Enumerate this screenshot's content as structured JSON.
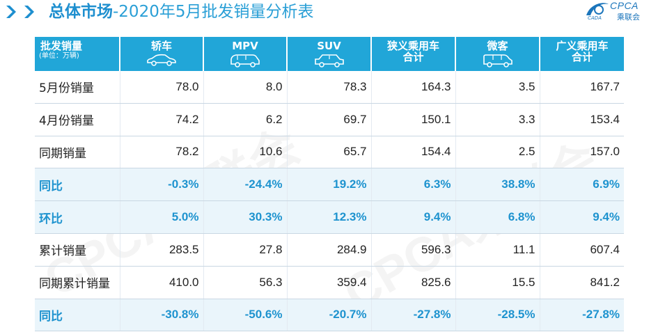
{
  "header": {
    "title_bold": "总体市场",
    "title_rest": "-2020年5月批发销量分析表"
  },
  "logo": {
    "text": "CPCA",
    "sub": "乘联会",
    "small": "CADA"
  },
  "watermark": "CPCA乘联会",
  "table": {
    "corner_label": "批发销量",
    "corner_unit": "(单位：万辆)",
    "columns": [
      {
        "line1": "轿车",
        "line2": "",
        "icon": "sedan-icon"
      },
      {
        "line1": "MPV",
        "line2": "",
        "icon": "mpv-icon"
      },
      {
        "line1": "SUV",
        "line2": "",
        "icon": "suv-icon"
      },
      {
        "line1": "狭义乘用车",
        "line2": "合计",
        "icon": ""
      },
      {
        "line1": "微客",
        "line2": "",
        "icon": "minivan-icon"
      },
      {
        "line1": "广义乘用车",
        "line2": "合计",
        "icon": ""
      }
    ],
    "rows": [
      {
        "label": "5月份销量",
        "values": [
          "78.0",
          "8.0",
          "78.3",
          "164.3",
          "3.5",
          "167.7"
        ],
        "pct": false
      },
      {
        "label": "4月份销量",
        "values": [
          "74.2",
          "6.2",
          "69.7",
          "150.1",
          "3.3",
          "153.4"
        ],
        "pct": false
      },
      {
        "label": "同期销量",
        "values": [
          "78.2",
          "10.6",
          "65.7",
          "154.4",
          "2.5",
          "157.0"
        ],
        "pct": false
      },
      {
        "label": "同比",
        "values": [
          "-0.3%",
          "-24.4%",
          "19.2%",
          "6.3%",
          "38.8%",
          "6.9%"
        ],
        "pct": true
      },
      {
        "label": "环比",
        "values": [
          "5.0%",
          "30.3%",
          "12.3%",
          "9.4%",
          "6.8%",
          "9.4%"
        ],
        "pct": true
      },
      {
        "label": "累计销量",
        "values": [
          "283.5",
          "27.8",
          "284.9",
          "596.3",
          "11.1",
          "607.4"
        ],
        "pct": false
      },
      {
        "label": "同期累计销量",
        "values": [
          "410.0",
          "56.3",
          "359.4",
          "825.6",
          "15.5",
          "841.2"
        ],
        "pct": false
      },
      {
        "label": "同比",
        "values": [
          "-30.8%",
          "-50.6%",
          "-20.7%",
          "-27.8%",
          "-28.5%",
          "-27.8%"
        ],
        "pct": true
      }
    ]
  },
  "colors": {
    "header_bg": "#21a6d8",
    "accent_text": "#1e93cf",
    "pct_row_bg": "#eaf5fb"
  }
}
